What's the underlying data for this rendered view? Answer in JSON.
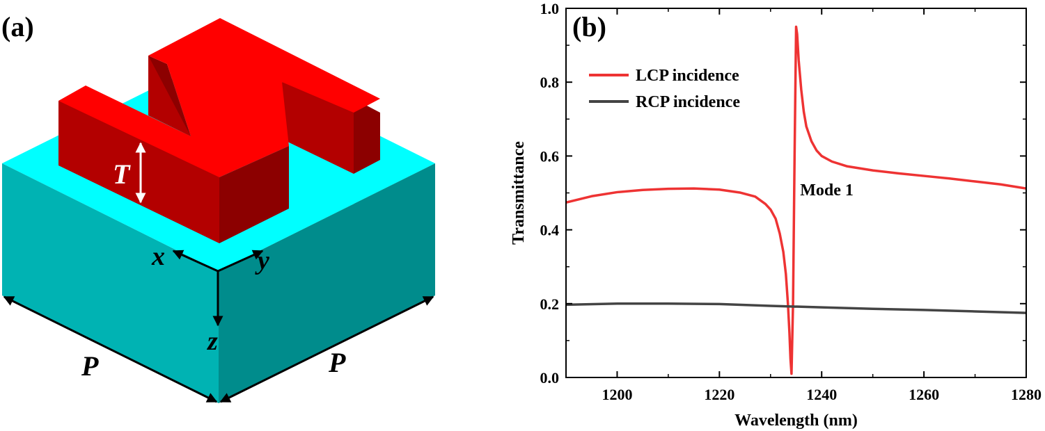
{
  "panel_a": {
    "label": "(a)",
    "dimension_thickness": "T",
    "dimension_period_left": "P",
    "dimension_period_right": "P",
    "axis_x": "x",
    "axis_y": "y",
    "axis_z": "z",
    "colors": {
      "substrate_top": "#00FFFF",
      "substrate_left": "#00B3B3",
      "substrate_right": "#008C8C",
      "structure_top": "#FF0000",
      "structure_front": "#B30000",
      "structure_dark": "#8C0000",
      "arrow": "#000000",
      "dimension_arrow": "#FFFFFF"
    }
  },
  "panel_b": {
    "label": "(b)",
    "colors": {
      "lcp": "#EE3333",
      "rcp": "#444444",
      "axis": "#000000"
    }
  },
  "chart_data": {
    "type": "line",
    "title": "",
    "xlabel": "Wavelength (nm)",
    "ylabel": "Transmittance",
    "xlim": [
      1190,
      1280
    ],
    "ylim": [
      0.0,
      1.0
    ],
    "xticks": [
      1200,
      1220,
      1240,
      1260,
      1280
    ],
    "xtick_labels": [
      "1200",
      "1220",
      "1240",
      "1260",
      "1280"
    ],
    "yticks": [
      0.0,
      0.2,
      0.4,
      0.6,
      0.8,
      1.0
    ],
    "ytick_labels": [
      "0.0",
      "0.2",
      "0.4",
      "0.6",
      "0.8",
      "1.0"
    ],
    "legend_position": "top-left",
    "annotation": {
      "text": "Mode 1",
      "x": 1241.5,
      "y": 0.51
    },
    "series": [
      {
        "name": "LCP incidence",
        "x": [
          1190,
          1195,
          1200,
          1205,
          1210,
          1215,
          1220,
          1224,
          1227,
          1229,
          1230,
          1231,
          1231.8,
          1232.5,
          1233,
          1233.4,
          1233.7,
          1233.9,
          1234.1,
          1234.4,
          1234.7,
          1235.0,
          1235.2,
          1235.5,
          1236,
          1236.5,
          1237,
          1238,
          1239,
          1240,
          1242,
          1245,
          1250,
          1255,
          1260,
          1265,
          1270,
          1275,
          1280
        ],
        "values": [
          0.474,
          0.491,
          0.502,
          0.508,
          0.511,
          0.512,
          0.509,
          0.501,
          0.49,
          0.47,
          0.455,
          0.43,
          0.39,
          0.34,
          0.28,
          0.2,
          0.12,
          0.05,
          0.01,
          0.2,
          0.6,
          0.95,
          0.93,
          0.86,
          0.78,
          0.72,
          0.68,
          0.64,
          0.615,
          0.6,
          0.585,
          0.572,
          0.561,
          0.553,
          0.546,
          0.539,
          0.531,
          0.523,
          0.512
        ]
      },
      {
        "name": "RCP incidence",
        "x": [
          1190,
          1200,
          1210,
          1220,
          1230,
          1240,
          1250,
          1260,
          1270,
          1280
        ],
        "values": [
          0.197,
          0.2,
          0.2,
          0.199,
          0.194,
          0.19,
          0.186,
          0.183,
          0.179,
          0.175
        ]
      }
    ]
  }
}
